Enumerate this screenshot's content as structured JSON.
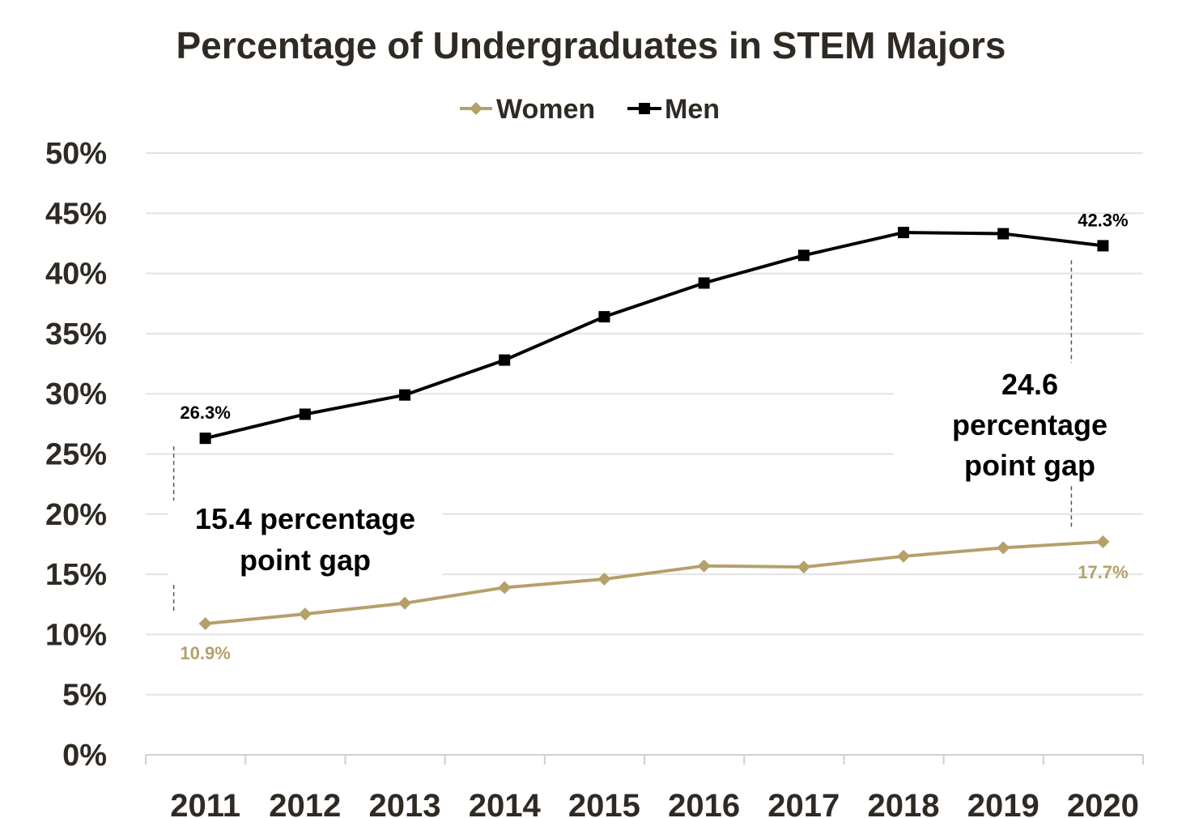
{
  "chart_data": {
    "type": "line",
    "title": "Percentage of Undergraduates in STEM Majors",
    "xlabel": "",
    "ylabel": "",
    "categories": [
      "2011",
      "2012",
      "2013",
      "2014",
      "2015",
      "2016",
      "2017",
      "2018",
      "2019",
      "2020"
    ],
    "ylim": [
      0,
      50
    ],
    "yticks": [
      "0%",
      "5%",
      "10%",
      "15%",
      "20%",
      "25%",
      "30%",
      "35%",
      "40%",
      "45%",
      "50%"
    ],
    "grid": true,
    "legend": "top",
    "series": [
      {
        "name": "Women",
        "color": "#b5a06a",
        "marker": "diamond",
        "values": [
          10.9,
          11.7,
          12.6,
          13.9,
          14.6,
          15.7,
          15.6,
          16.5,
          17.2,
          17.7
        ]
      },
      {
        "name": "Men",
        "color": "#000000",
        "marker": "square",
        "values": [
          26.3,
          28.3,
          29.9,
          32.8,
          36.4,
          39.2,
          41.5,
          43.4,
          43.3,
          42.3
        ]
      }
    ],
    "data_labels": {
      "women_first": "10.9%",
      "women_last": "17.7%",
      "men_first": "26.3%",
      "men_last": "42.3%"
    },
    "annotations": {
      "gap_2011_line1": "15.4 percentage",
      "gap_2011_line2": "point gap",
      "gap_2020_line1": "24.6",
      "gap_2020_line2": "percentage",
      "gap_2020_line3": "point gap"
    }
  }
}
